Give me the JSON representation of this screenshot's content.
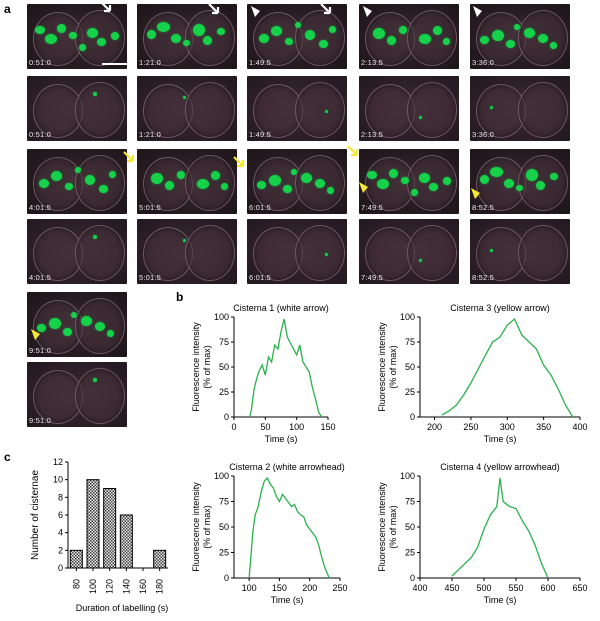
{
  "panels": {
    "a": "a",
    "b": "b",
    "c": "c"
  },
  "timelapse": {
    "row1": [
      "0:51.0",
      "1:21.0",
      "1:49.5",
      "2:13.5",
      "3:36.0"
    ],
    "row2": [
      "4:01.5",
      "5:01.5",
      "6:01.5",
      "7:49.5",
      "8:52.5"
    ],
    "row3": [
      "9:51.0"
    ]
  },
  "colors": {
    "trace": "#2bb24c",
    "blob": "#16d24a",
    "white_marker": "#ffffff",
    "yellow_marker": "#f5e63a"
  },
  "chart_data": [
    {
      "type": "line",
      "title": "Cisterna 1 (white arrow)",
      "xlabel": "Time (s)",
      "ylabel": "Fluorescence intensity (% of max)",
      "xlim": [
        0,
        150
      ],
      "ylim": [
        0,
        100
      ],
      "xticks": [
        0,
        50,
        100,
        150
      ],
      "yticks": [
        0,
        25,
        50,
        75,
        100
      ],
      "series": [
        {
          "x": [
            25,
            28,
            32,
            36,
            40,
            45,
            50,
            55,
            60,
            65,
            70,
            75,
            80,
            85,
            90,
            95,
            100,
            105,
            110,
            115,
            120,
            125,
            130,
            135,
            140
          ],
          "y": [
            0,
            8,
            28,
            38,
            46,
            52,
            42,
            60,
            55,
            72,
            68,
            85,
            98,
            80,
            74,
            68,
            62,
            72,
            55,
            50,
            45,
            30,
            18,
            5,
            0
          ]
        }
      ]
    },
    {
      "type": "line",
      "title": "Cisterna 3 (yellow arrow)",
      "xlabel": "Time (s)",
      "ylabel": "Fluorescence intensity (% of max)",
      "xlim": [
        180,
        400
      ],
      "ylim": [
        0,
        100
      ],
      "xticks": [
        200,
        250,
        300,
        350,
        400
      ],
      "yticks": [
        0,
        25,
        50,
        75,
        100
      ],
      "series": [
        {
          "x": [
            210,
            220,
            230,
            240,
            250,
            260,
            270,
            280,
            290,
            300,
            310,
            320,
            330,
            340,
            350,
            360,
            370,
            380,
            390
          ],
          "y": [
            2,
            6,
            12,
            22,
            34,
            48,
            62,
            75,
            80,
            92,
            98,
            82,
            75,
            68,
            52,
            42,
            28,
            12,
            0
          ]
        }
      ]
    },
    {
      "type": "line",
      "title": "Cisterna 2 (white arrowhead)",
      "xlabel": "Time (s)",
      "ylabel": "Fluorescence intensity (% of max)",
      "xlim": [
        75,
        250
      ],
      "ylim": [
        0,
        100
      ],
      "xticks": [
        100,
        150,
        200,
        250
      ],
      "yticks": [
        0,
        25,
        50,
        75,
        100
      ],
      "series": [
        {
          "x": [
            100,
            103,
            106,
            110,
            115,
            120,
            125,
            130,
            135,
            140,
            145,
            150,
            155,
            160,
            165,
            170,
            175,
            180,
            185,
            190,
            195,
            200,
            205,
            210,
            215,
            220,
            225,
            230,
            232
          ],
          "y": [
            0,
            22,
            45,
            62,
            70,
            85,
            95,
            98,
            92,
            88,
            80,
            75,
            82,
            78,
            74,
            70,
            72,
            65,
            62,
            60,
            52,
            48,
            44,
            40,
            32,
            20,
            10,
            3,
            0
          ]
        }
      ]
    },
    {
      "type": "line",
      "title": "Cisterna 4 (yellow arrowhead)",
      "xlabel": "Time (s)",
      "ylabel": "Fluorescence intensity (% of max)",
      "xlim": [
        400,
        650
      ],
      "ylim": [
        0,
        100
      ],
      "xticks": [
        400,
        450,
        500,
        550,
        600,
        650
      ],
      "yticks": [
        0,
        25,
        50,
        75,
        100
      ],
      "series": [
        {
          "x": [
            450,
            460,
            470,
            480,
            490,
            500,
            510,
            520,
            525,
            530,
            540,
            550,
            560,
            570,
            580,
            590,
            600
          ],
          "y": [
            2,
            8,
            14,
            20,
            30,
            48,
            62,
            70,
            98,
            75,
            70,
            68,
            56,
            46,
            32,
            14,
            0
          ]
        }
      ]
    },
    {
      "type": "bar",
      "xlabel": "Duration of labelling (s)",
      "ylabel": "Number of cisternae",
      "categories": [
        "80",
        "100",
        "120",
        "140",
        "160",
        "180"
      ],
      "values": [
        2,
        10,
        9,
        6,
        0,
        2
      ],
      "ylim": [
        0,
        12
      ],
      "yticks": [
        0,
        2,
        4,
        6,
        8,
        10,
        12
      ]
    }
  ]
}
